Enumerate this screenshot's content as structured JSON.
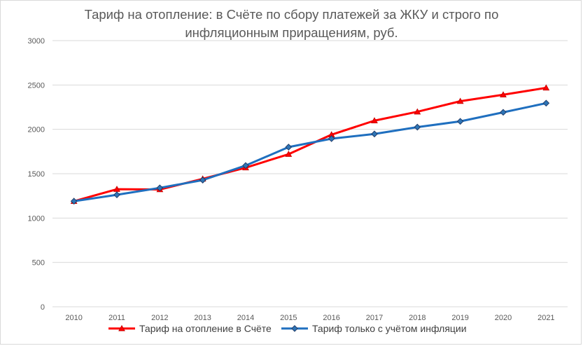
{
  "chart_data": {
    "type": "line",
    "title_line1": "Тариф на отопление: в Счёте по сбору платежей за ЖКУ и строго по",
    "title_line2": "инфляционным приращениям, руб.",
    "xlabel": "",
    "ylabel": "",
    "ylim": [
      0,
      3000
    ],
    "yticks": [
      0,
      500,
      1000,
      1500,
      2000,
      2500,
      3000
    ],
    "categories": [
      "2010",
      "2011",
      "2012",
      "2013",
      "2014",
      "2015",
      "2016",
      "2017",
      "2018",
      "2019",
      "2020",
      "2021"
    ],
    "grid": true,
    "legend": "bottom",
    "series": [
      {
        "name": "Тариф на отопление в Счёте",
        "color": "#ff0000",
        "marker": "triangle",
        "values": [
          1190,
          1325,
          1322,
          1442,
          1568,
          1720,
          1940,
          2098,
          2198,
          2317,
          2390,
          2468
        ]
      },
      {
        "name": "Тариф только с учётом инфляции",
        "color": "#1f6fbf",
        "marker": "diamond",
        "values": [
          1190,
          1262,
          1340,
          1428,
          1592,
          1800,
          1895,
          1948,
          2025,
          2090,
          2192,
          2295
        ]
      }
    ]
  }
}
